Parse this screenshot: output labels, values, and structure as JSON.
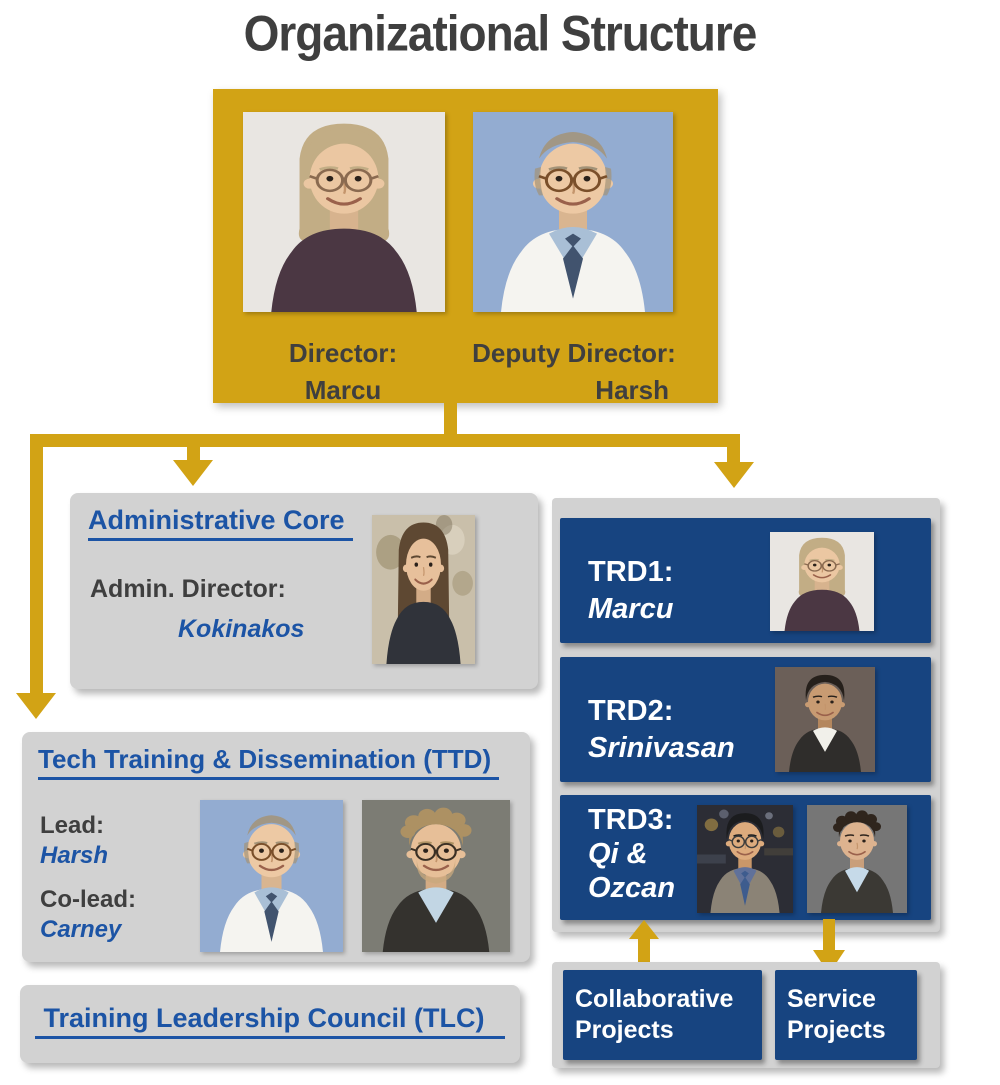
{
  "page_title": "Organizational Structure",
  "top_box": {
    "director_label": "Director:",
    "director_name": "Marcu",
    "deputy_label": "Deputy Director:",
    "deputy_name": "Harsh"
  },
  "admin_core": {
    "title": "Administrative Core",
    "role_label": "Admin. Director:",
    "name": "Kokinakos"
  },
  "ttd": {
    "title": "Tech Training & Dissemination (TTD)",
    "lead_label": "Lead:",
    "lead_name": "Harsh",
    "colead_label": "Co-lead:",
    "colead_name": "Carney"
  },
  "tlc": {
    "title": "Training Leadership Council (TLC)"
  },
  "trds": [
    {
      "label": "TRD1:",
      "line2": "Marcu",
      "line3": ""
    },
    {
      "label": "TRD2:",
      "line2": "Srinivasan",
      "line3": ""
    },
    {
      "label": "TRD3:",
      "line2": "Qi &",
      "line3": "Ozcan"
    }
  ],
  "projects": [
    {
      "label": "Collaborative Projects"
    },
    {
      "label": "Service Projects"
    }
  ],
  "colors": {
    "gold": "#D2A315",
    "box_blue": "#174480",
    "text_blue": "#1C54A5",
    "box_gray": "#D2D2D2",
    "text_dark": "#3F3F3F"
  },
  "photos": {
    "marcu": {
      "style": "bob",
      "bg": "#E9E6E2",
      "hair": "#C2AD85",
      "skin": "#EBC7A2",
      "top": "#4B3743",
      "glasses": true,
      "frame": "#8A6A50"
    },
    "harsh": {
      "style": "bald",
      "bg": "#93ACD1",
      "hair": "#A39378",
      "skin": "#EDC9A4",
      "top": "#F5F4F0",
      "shirt": "#A9BFD6",
      "tie": "#41536E",
      "glasses": true,
      "frame": "#7A4F2A"
    },
    "kokinakos": {
      "style": "long",
      "bg": "#C9BFAA",
      "blur": true,
      "hair": "#5E4832",
      "skin": "#E7C09B",
      "top": "#30333A"
    },
    "carney": {
      "style": "curly",
      "bg": "#7C7C74",
      "hair": "#AD9163",
      "skin": "#E7BF98",
      "top": "#34322E",
      "shirt": "#C2D6E4",
      "glasses": true,
      "frame": "#3A2F24",
      "beard": "#C8A87E"
    },
    "srinivasan": {
      "style": "short",
      "bg": "#6B5F58",
      "hair": "#26201B",
      "skin": "#C89B72",
      "top": "#2F2D2B",
      "shirt": "#F1F0EA"
    },
    "qi": {
      "style": "short",
      "bg": "#2C2D35",
      "bokeh": true,
      "hair": "#1B1C1E",
      "skin": "#DDAB7D",
      "top": "#8B8376",
      "shirt": "#60719A",
      "tie": "#3E5C8E",
      "glasses": true,
      "frame": "#3C3C3C"
    },
    "ozcan": {
      "style": "curly",
      "bg": "#767676",
      "hair": "#2F251D",
      "skin": "#DDB38F",
      "top": "#3B3934",
      "shirt": "#C6DAE9"
    }
  }
}
